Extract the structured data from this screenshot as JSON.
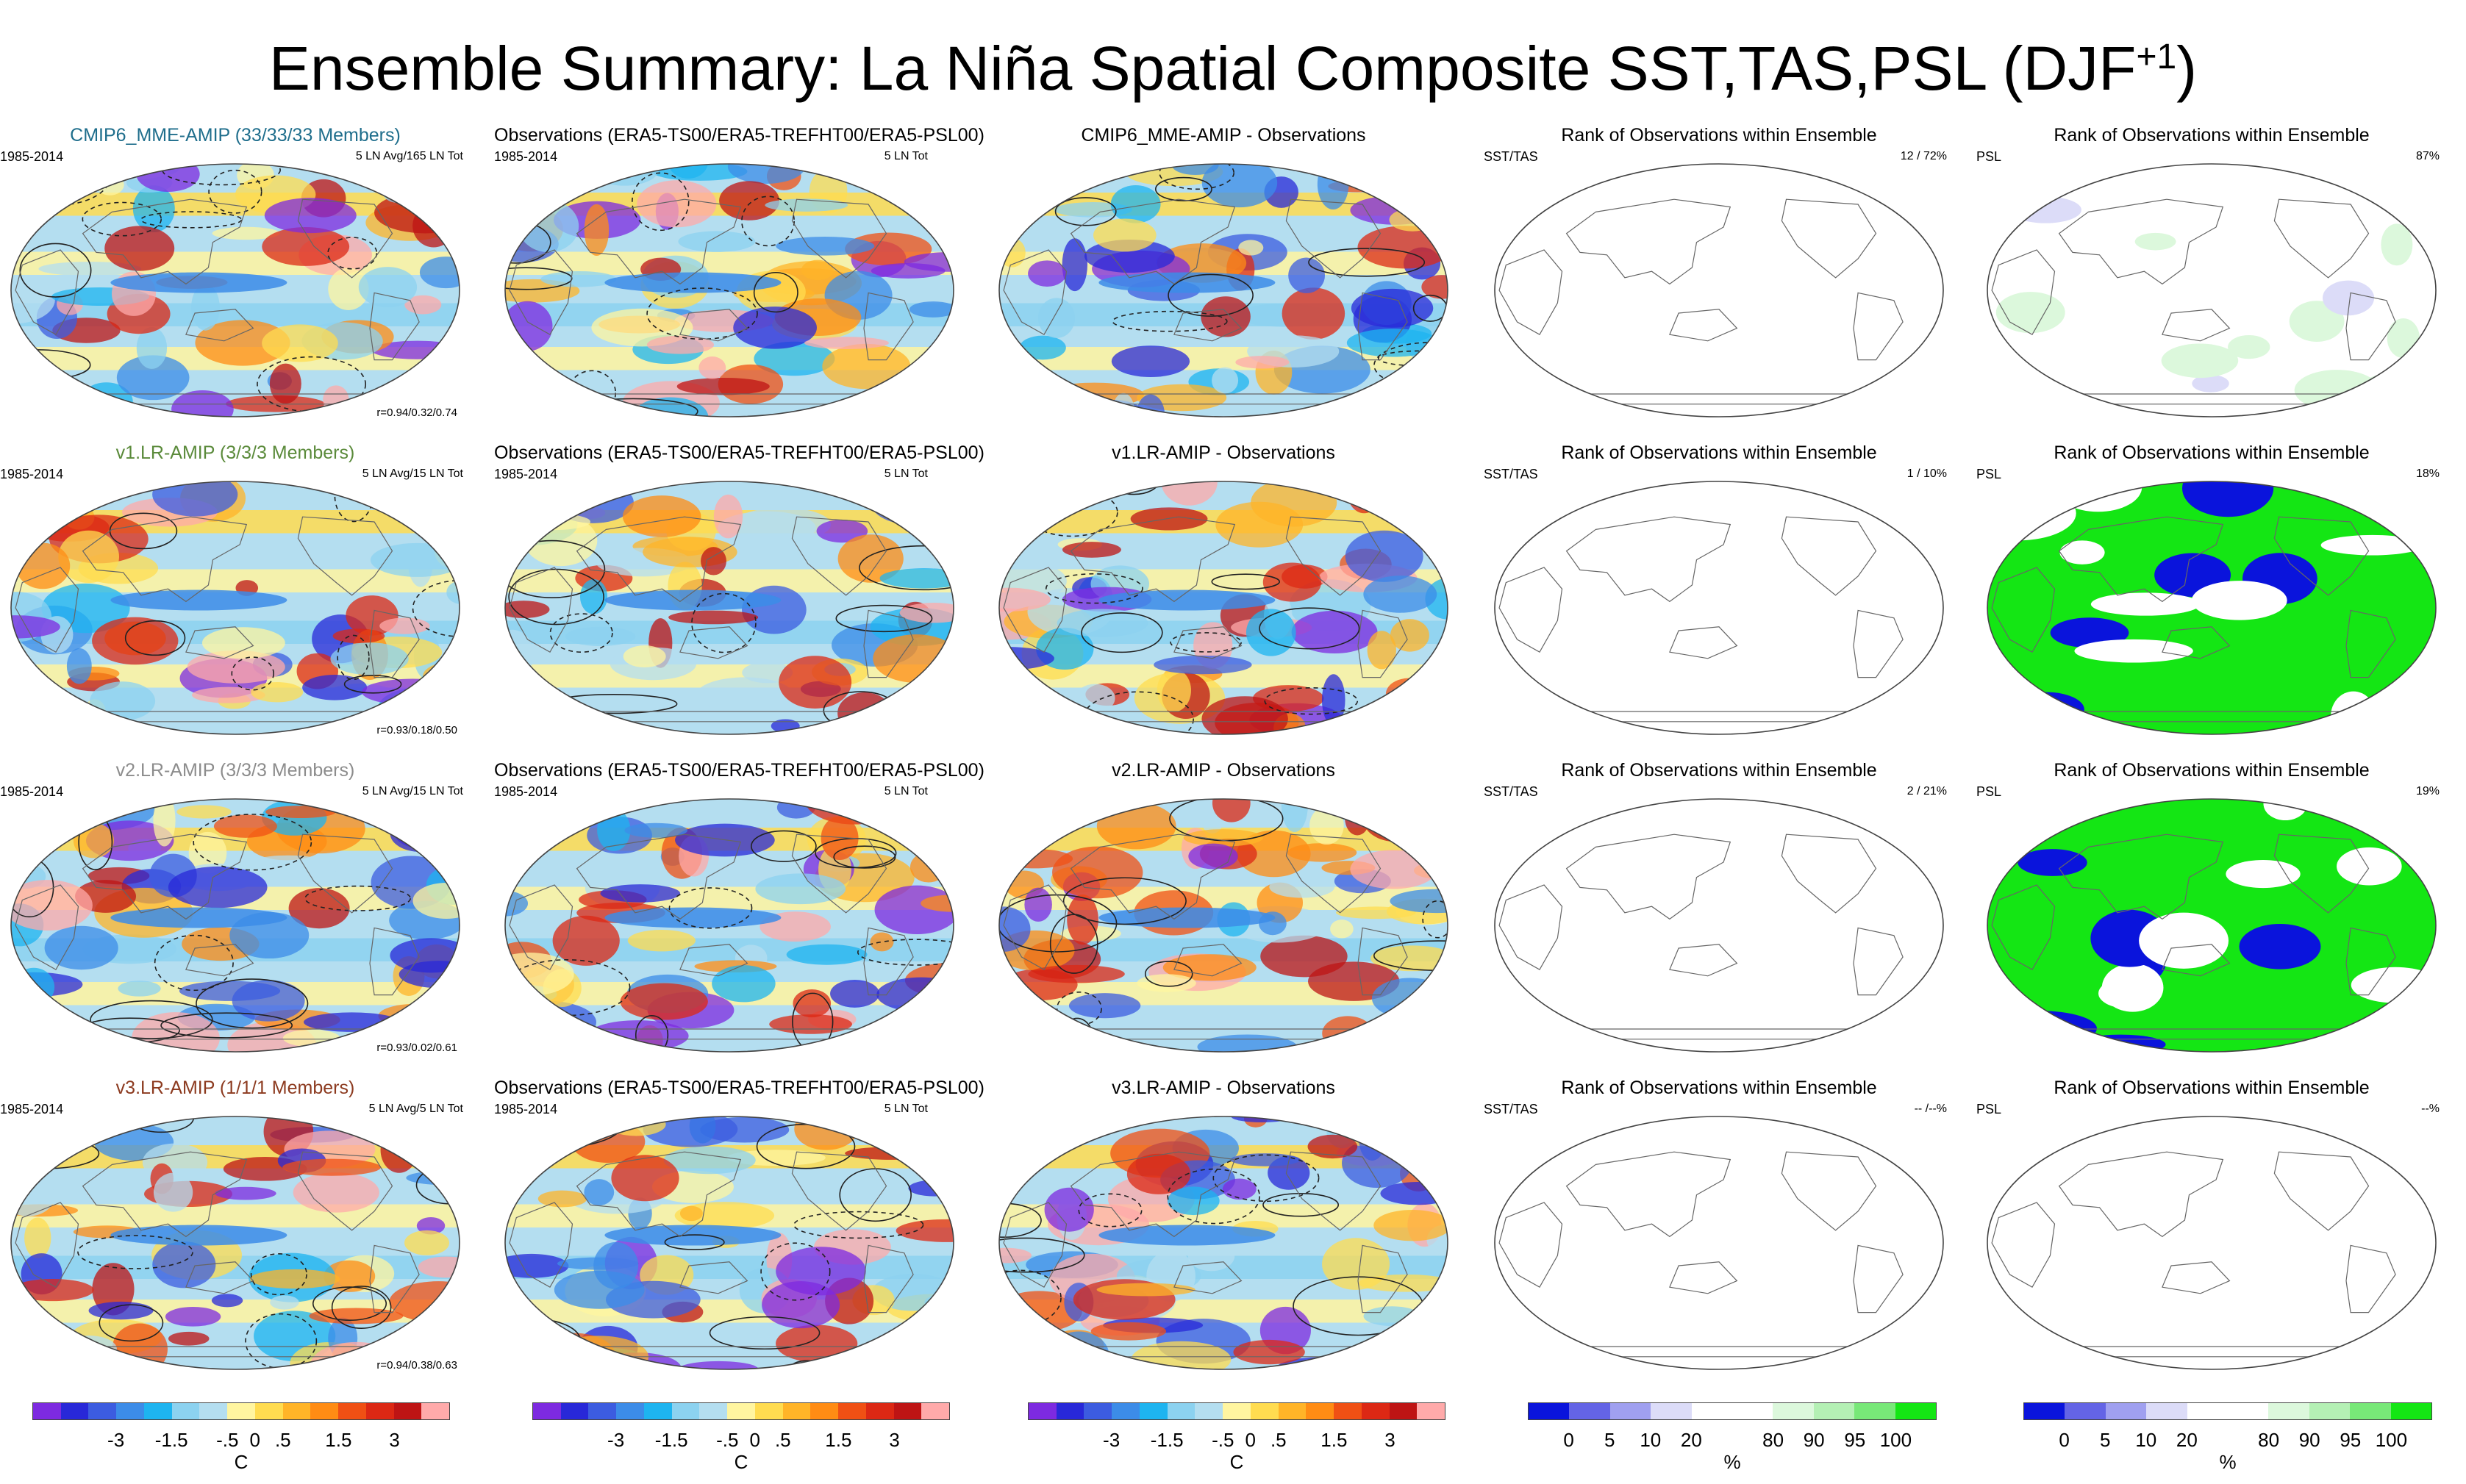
{
  "figure": {
    "title": "Ensemble Summary: La Niña Spatial Composite SST,TAS,PSL (DJF",
    "title_sup": "+1",
    "title_close": ")"
  },
  "rows": [
    {
      "model": {
        "title": "CMIP6_MME-AMIP (33/33/33 Members)",
        "color": "#1f6e8c",
        "years": "1985-2014",
        "tag": "5 LN Avg/165 LN Tot",
        "stat": "r=0.94/0.32/0.74"
      },
      "obs": {
        "title": "Observations (ERA5-TS00/ERA5-TREFHT00/ERA5-PSL00)",
        "years": "1985-2014",
        "tag": "5 LN Tot"
      },
      "diff": {
        "title": "CMIP6_MME-AMIP - Observations"
      },
      "rank_sst": {
        "title": "Rank of Observations within Ensemble",
        "label": "SST/TAS",
        "value": "12 /  72%"
      },
      "rank_psl": {
        "title": "Rank of Observations within Ensemble",
        "label": "PSL",
        "value": "87%"
      }
    },
    {
      "model": {
        "title": "v1.LR-AMIP (3/3/3 Members)",
        "color": "#5a8a3a",
        "years": "1985-2014",
        "tag": "5 LN Avg/15 LN Tot",
        "stat": "r=0.93/0.18/0.50"
      },
      "obs": {
        "title": "Observations (ERA5-TS00/ERA5-TREFHT00/ERA5-PSL00)",
        "years": "1985-2014",
        "tag": "5 LN Tot"
      },
      "diff": {
        "title": "v1.LR-AMIP - Observations"
      },
      "rank_sst": {
        "title": "Rank of Observations within Ensemble",
        "label": "SST/TAS",
        "value": "1 /  10%"
      },
      "rank_psl": {
        "title": "Rank of Observations within Ensemble",
        "label": "PSL",
        "value": "18%"
      }
    },
    {
      "model": {
        "title": "v2.LR-AMIP (3/3/3 Members)",
        "color": "#8c8c8c",
        "years": "1985-2014",
        "tag": "5 LN Avg/15 LN Tot",
        "stat": "r=0.93/0.02/0.61"
      },
      "obs": {
        "title": "Observations (ERA5-TS00/ERA5-TREFHT00/ERA5-PSL00)",
        "years": "1985-2014",
        "tag": "5 LN Tot"
      },
      "diff": {
        "title": "v2.LR-AMIP - Observations"
      },
      "rank_sst": {
        "title": "Rank of Observations within Ensemble",
        "label": "SST/TAS",
        "value": "2 /  21%"
      },
      "rank_psl": {
        "title": "Rank of Observations within Ensemble",
        "label": "PSL",
        "value": "19%"
      }
    },
    {
      "model": {
        "title": "v3.LR-AMIP (1/1/1 Members)",
        "color": "#8c3a1f",
        "years": "1985-2014",
        "tag": "5 LN Avg/5 LN Tot",
        "stat": "r=0.94/0.38/0.63"
      },
      "obs": {
        "title": "Observations (ERA5-TS00/ERA5-TREFHT00/ERA5-PSL00)",
        "years": "1985-2014",
        "tag": "5 LN Tot"
      },
      "diff": {
        "title": "v3.LR-AMIP - Observations"
      },
      "rank_sst": {
        "title": "Rank of Observations within Ensemble",
        "label": "SST/TAS",
        "value": "-- /--%"
      },
      "rank_psl": {
        "title": "Rank of Observations within Ensemble",
        "label": "PSL",
        "value": "--%"
      }
    }
  ],
  "colorbars": {
    "temp": {
      "colors": [
        "#7d2ae0",
        "#2828d8",
        "#3c5ce0",
        "#3c8ce8",
        "#1eb4f0",
        "#8cd2f0",
        "#b4def0",
        "#fff5a0",
        "#ffdc50",
        "#ffb428",
        "#ff8c14",
        "#f05014",
        "#dc2814",
        "#be1414",
        "#ffaaaa"
      ],
      "ticks": [
        "-3",
        "-1.5",
        "-.5",
        "0",
        ".5",
        "1.5",
        "3"
      ],
      "unit": "C"
    },
    "rank": {
      "colors": [
        "#0a14dc",
        "#6464e6",
        "#a0a0f0",
        "#dcdcf8",
        "#ffffff",
        "#ffffff",
        "#dcf8dc",
        "#b4f0b4",
        "#78e878",
        "#14e614"
      ],
      "ticks": [
        "0",
        "5",
        "10",
        "20",
        "80",
        "90",
        "95",
        "100"
      ],
      "unit": "%"
    }
  }
}
